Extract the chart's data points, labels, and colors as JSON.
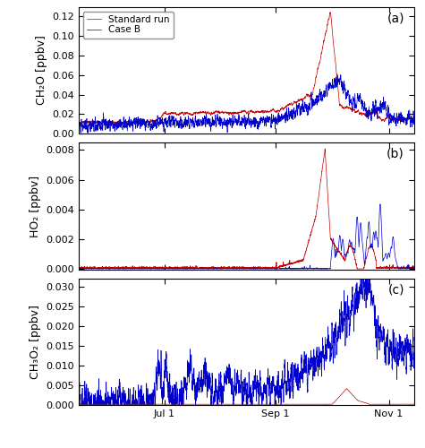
{
  "title_a": "(a)",
  "title_b": "(b)",
  "title_c": "(c)",
  "ylabel_a": "CH₂O [ppbv]",
  "ylabel_b": "HO₂ [ppbv]",
  "ylabel_c": "CH₃O₂ [ppbv]",
  "color_red": "#cc0000",
  "color_blue": "#0000cc",
  "legend_red": "Standard run",
  "legend_blue": "Case B",
  "ylim_a": [
    0.0,
    0.13
  ],
  "ylim_b": [
    -5e-05,
    0.0085
  ],
  "ylim_c": [
    -0.0002,
    0.032
  ],
  "yticks_a": [
    0.0,
    0.02,
    0.04,
    0.06,
    0.08,
    0.1,
    0.12
  ],
  "yticks_b": [
    0.0,
    0.002,
    0.004,
    0.006,
    0.008
  ],
  "yticks_c": [
    0.0,
    0.005,
    0.01,
    0.015,
    0.02,
    0.025,
    0.03
  ],
  "xtick_labels": [
    "Jul 1",
    "Sep 1",
    "Nov 1"
  ],
  "total_days": 184,
  "jul1": 47.0,
  "sep1": 108.0,
  "oct1": 139.0,
  "nov1": 170.0,
  "seed": 42,
  "n_points": 4000
}
